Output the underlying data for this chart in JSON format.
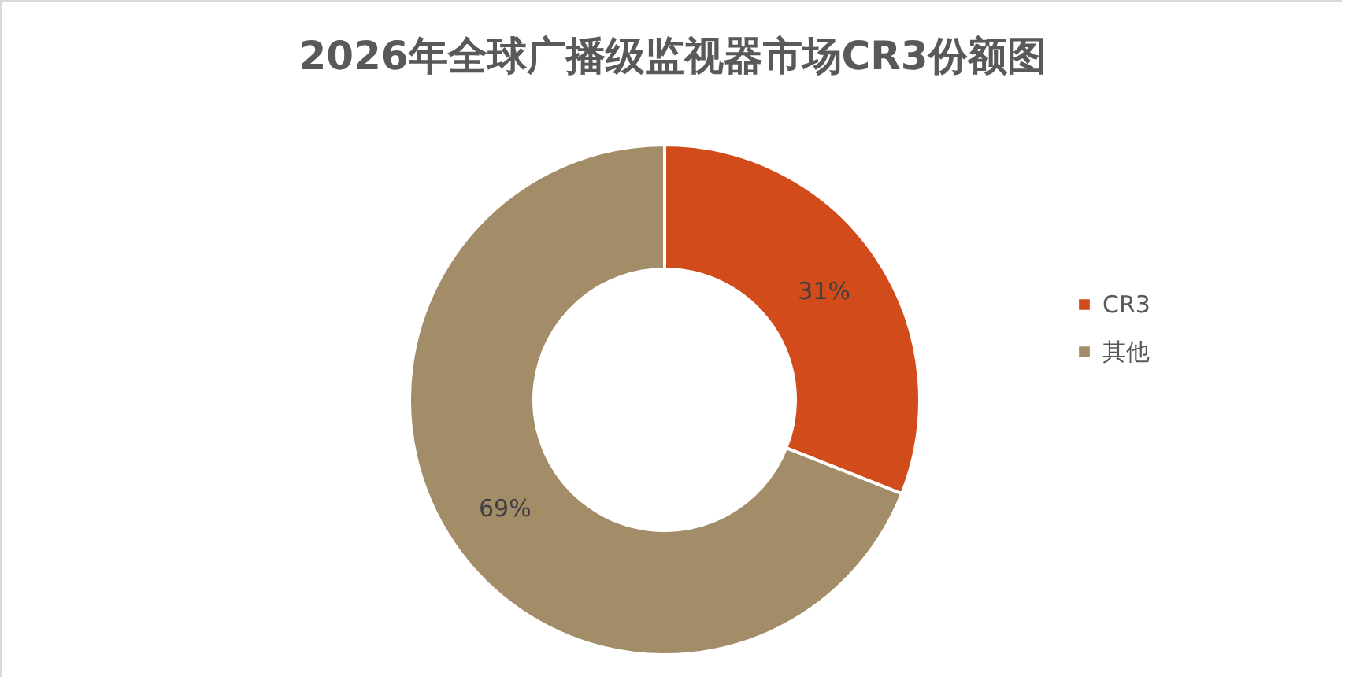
{
  "chart_data": {
    "type": "donut",
    "title": "2026年全球广播级监视器市场CR3份额图",
    "categories": [
      "CR3",
      "其他"
    ],
    "values": [
      31,
      69
    ],
    "colors": [
      "#d24b1a",
      "#a38d69"
    ],
    "value_labels": [
      "31%",
      "69%"
    ],
    "legend": "right"
  }
}
